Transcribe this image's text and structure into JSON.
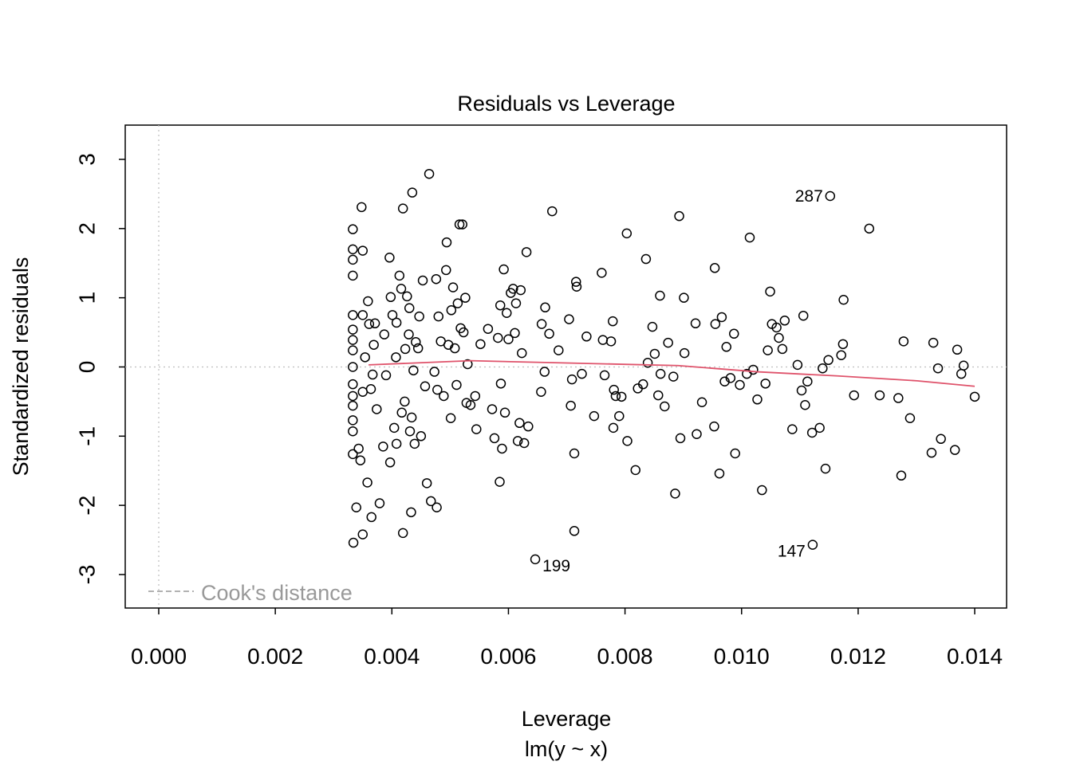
{
  "chart_data": {
    "type": "scatter",
    "title": "Residuals vs Leverage",
    "x_label": "Leverage",
    "subtitle": "lm(y ~ x)",
    "y_label": "Standardized residuals",
    "xlim": [
      -0.000575,
      0.014547
    ],
    "ylim": [
      -3.484,
      3.495
    ],
    "xticks": [
      {
        "value": 0,
        "label": "0.000"
      },
      {
        "value": 0.002,
        "label": "0.002"
      },
      {
        "value": 0.004,
        "label": "0.004"
      },
      {
        "value": 0.006,
        "label": "0.006"
      },
      {
        "value": 0.008,
        "label": "0.008"
      },
      {
        "value": 0.01,
        "label": "0.010"
      },
      {
        "value": 0.012,
        "label": "0.012"
      },
      {
        "value": 0.014,
        "label": "0.014"
      }
    ],
    "yticks": [
      -3,
      -2,
      -1,
      0,
      1,
      2,
      3
    ],
    "color": "#000000",
    "x": [
      0.00333,
      0.00333,
      0.00333,
      0.00333,
      0.00333,
      0.00333,
      0.00333,
      0.00333,
      0.00333,
      0.00333,
      0.00333,
      0.00333,
      0.00333,
      0.00333,
      0.00333,
      0.00334,
      0.00339,
      0.00343,
      0.00346,
      0.00348,
      0.0035,
      0.0035,
      0.0035,
      0.0035,
      0.00354,
      0.00358,
      0.00359,
      0.00361,
      0.00364,
      0.00365,
      0.00367,
      0.00369,
      0.00371,
      0.00374,
      0.00379,
      0.00385,
      0.00387,
      0.0039,
      0.00396,
      0.00397,
      0.00398,
      0.00401,
      0.00404,
      0.00407,
      0.00408,
      0.00408,
      0.00413,
      0.00416,
      0.00417,
      0.00419,
      0.00419,
      0.00422,
      0.00423,
      0.00426,
      0.00429,
      0.0043,
      0.00431,
      0.00433,
      0.00434,
      0.00435,
      0.00437,
      0.00439,
      0.00441,
      0.00445,
      0.00447,
      0.0045,
      0.00453,
      0.00457,
      0.0046,
      0.00464,
      0.00467,
      0.00473,
      0.00476,
      0.00477,
      0.00478,
      0.0048,
      0.00484,
      0.00489,
      0.00493,
      0.00494,
      0.00497,
      0.00501,
      0.00502,
      0.00505,
      0.00508,
      0.00511,
      0.00513,
      0.00516,
      0.00518,
      0.00521,
      0.00523,
      0.00526,
      0.00528,
      0.0053,
      0.00535,
      0.00543,
      0.00545,
      0.00552,
      0.00565,
      0.00572,
      0.00576,
      0.00582,
      0.00585,
      0.00586,
      0.00587,
      0.00589,
      0.00592,
      0.00594,
      0.00597,
      0.006,
      0.00604,
      0.00608,
      0.00611,
      0.00613,
      0.00616,
      0.00619,
      0.00621,
      0.00623,
      0.00627,
      0.00631,
      0.00634,
      0.00646,
      0.00656,
      0.00657,
      0.00662,
      0.00663,
      0.0067,
      0.00675,
      0.00686,
      0.00704,
      0.00707,
      0.00709,
      0.00713,
      0.00713,
      0.00716,
      0.00717,
      0.00726,
      0.00734,
      0.00747,
      0.0076,
      0.00762,
      0.00765,
      0.00776,
      0.00779,
      0.0078,
      0.00781,
      0.00784,
      0.0079,
      0.00794,
      0.00803,
      0.00804,
      0.00818,
      0.00822,
      0.00831,
      0.00836,
      0.00839,
      0.00847,
      0.00851,
      0.00857,
      0.0086,
      0.00861,
      0.00868,
      0.00874,
      0.00883,
      0.00886,
      0.00893,
      0.00895,
      0.00901,
      0.00902,
      0.00921,
      0.00923,
      0.00932,
      0.00953,
      0.00954,
      0.00955,
      0.00962,
      0.00966,
      0.00971,
      0.00974,
      0.00981,
      0.00987,
      0.00989,
      0.00997,
      0.01009,
      0.01014,
      0.0102,
      0.01027,
      0.01035,
      0.01041,
      0.01045,
      0.01049,
      0.01052,
      0.0106,
      0.01064,
      0.0107,
      0.01074,
      0.01087,
      0.01096,
      0.01103,
      0.01106,
      0.01109,
      0.01113,
      0.01121,
      0.01122,
      0.01134,
      0.01139,
      0.01144,
      0.01149,
      0.01152,
      0.01171,
      0.01174,
      0.01175,
      0.01193,
      0.01219,
      0.01237,
      0.01269,
      0.01274,
      0.01278,
      0.01289,
      0.01326,
      0.01329,
      0.01337,
      0.01342,
      0.01366,
      0.0137,
      0.01377,
      0.01381,
      0.014
    ],
    "values": [
      1.99,
      1.7,
      1.55,
      1.32,
      0.75,
      0.54,
      0.39,
      0.24,
      0,
      -0.25,
      -0.42,
      -0.56,
      -0.77,
      -0.93,
      -1.26,
      -2.54,
      -2.03,
      -1.18,
      -1.35,
      2.31,
      1.68,
      -2.42,
      0.75,
      -0.36,
      0.14,
      -1.67,
      0.95,
      0.62,
      -0.32,
      -2.17,
      -0.11,
      0.32,
      0.63,
      -0.61,
      -1.97,
      -1.15,
      0.47,
      -0.12,
      1.58,
      -1.38,
      1.01,
      0.75,
      -0.88,
      0.14,
      0.64,
      -1.11,
      1.32,
      1.13,
      -0.66,
      2.29,
      -2.4,
      -0.5,
      0.26,
      1.02,
      0.47,
      0.85,
      -0.93,
      -2.1,
      -0.73,
      2.52,
      -0.05,
      -1.11,
      0.36,
      0.27,
      0.73,
      -1,
      1.25,
      -0.28,
      -1.68,
      2.79,
      -1.94,
      -0.07,
      1.27,
      -2.03,
      -0.33,
      0.73,
      0.37,
      -0.42,
      1.4,
      1.8,
      0.32,
      -0.74,
      0.82,
      1.15,
      0.27,
      -0.26,
      0.92,
      2.06,
      0.56,
      2.06,
      0.5,
      1,
      -0.52,
      0.04,
      -0.55,
      -0.42,
      -0.9,
      0.33,
      0.55,
      -0.61,
      -1.03,
      0.42,
      -1.66,
      0.89,
      -0.24,
      -1.18,
      1.41,
      -0.66,
      0.78,
      0.4,
      1.07,
      1.13,
      0.49,
      0.92,
      -1.07,
      -0.81,
      1.11,
      0.2,
      -1.1,
      1.66,
      -0.86,
      -2.78,
      -0.36,
      0.62,
      -0.07,
      0.86,
      0.48,
      2.25,
      0.24,
      0.69,
      -0.56,
      -0.18,
      -1.25,
      -2.37,
      1.23,
      1.16,
      -0.1,
      0.44,
      -0.71,
      1.36,
      0.39,
      -0.12,
      0.37,
      0.66,
      -0.88,
      -0.33,
      -0.42,
      -0.71,
      -0.43,
      1.93,
      -1.07,
      -1.49,
      -0.31,
      -0.25,
      1.56,
      0.06,
      0.58,
      0.19,
      -0.41,
      1.03,
      -0.1,
      -0.57,
      0.35,
      -0.14,
      -1.83,
      2.18,
      -1.03,
      1,
      0.2,
      0.63,
      -0.97,
      -0.51,
      -0.86,
      1.43,
      0.62,
      -1.54,
      0.72,
      -0.21,
      0.29,
      -0.16,
      0.48,
      -1.25,
      -0.26,
      -0.1,
      1.87,
      -0.04,
      -0.47,
      -1.78,
      -0.24,
      0.24,
      1.09,
      0.62,
      0.57,
      0.42,
      0.26,
      0.67,
      -0.9,
      0.03,
      -0.34,
      0.74,
      -0.55,
      -0.21,
      -0.95,
      -2.57,
      -0.88,
      -0.02,
      -1.47,
      0.1,
      2.47,
      0.17,
      0.33,
      0.97,
      -0.41,
      2,
      -0.41,
      -0.45,
      -1.57,
      0.37,
      -0.74,
      -1.24,
      0.35,
      -0.02,
      -1.04,
      -1.2,
      0.25,
      -0.1,
      0.02,
      -0.43
    ],
    "smooth": {
      "color": "#DF536B",
      "x": [
        0.0036,
        0.00535,
        0.00686,
        0.00891,
        0.01027,
        0.01165,
        0.01301,
        0.014
      ],
      "values": [
        0.03,
        0.09,
        0.06,
        0.02,
        -0.07,
        -0.13,
        -0.2,
        -0.28
      ]
    },
    "annotations": [
      {
        "text": "287",
        "x": 0.01152,
        "y": 2.47,
        "side": "left"
      },
      {
        "text": "199",
        "x": 0.00646,
        "y": -2.78,
        "side": "right"
      },
      {
        "text": "147",
        "x": 0.01122,
        "y": -2.57,
        "side": "left"
      }
    ],
    "reference_lines": {
      "x": 0,
      "y": 0,
      "color": "#BEBEBE"
    },
    "legend": {
      "label": "Cook's distance",
      "position": "bottomleft",
      "color": "#999999"
    }
  }
}
